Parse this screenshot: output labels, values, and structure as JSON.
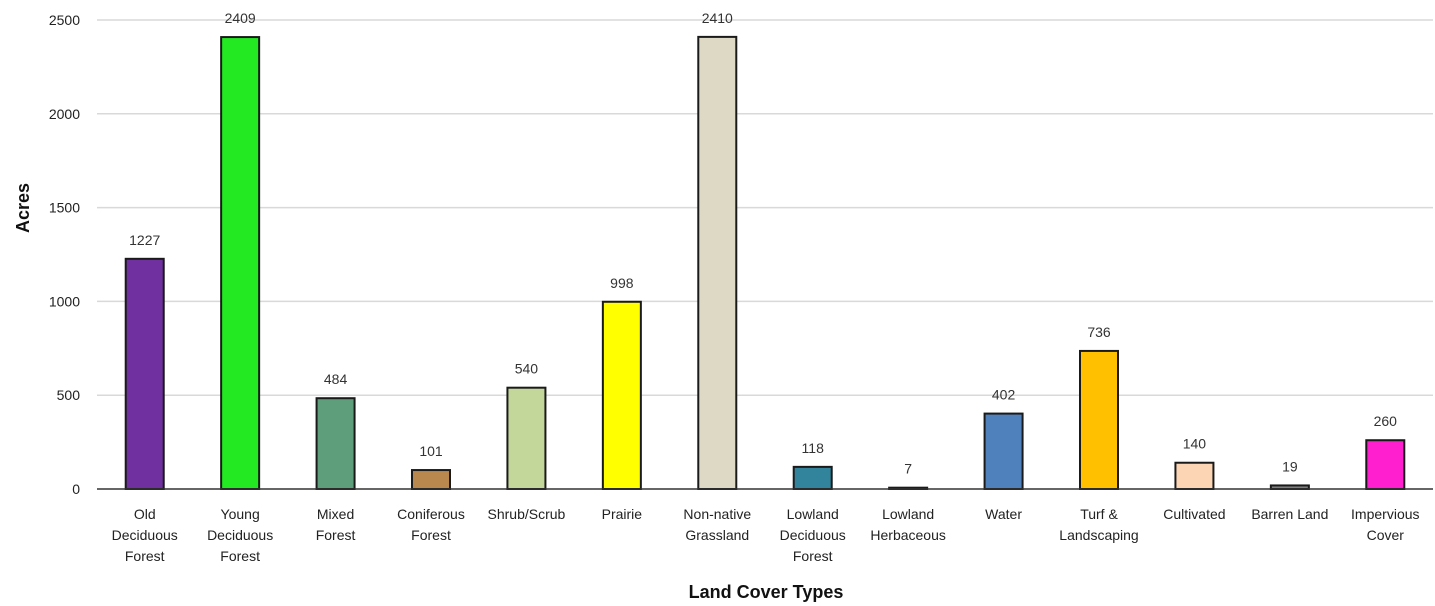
{
  "chart_data": {
    "type": "bar",
    "title": "",
    "xlabel": "Land Cover Types",
    "ylabel": "Acres",
    "ylim": [
      0,
      2500
    ],
    "yticks": [
      0,
      500,
      1000,
      1500,
      2000,
      2500
    ],
    "grid": true,
    "legend": "none",
    "categories": [
      [
        "Old",
        "Deciduous",
        "Forest"
      ],
      [
        "Young",
        "Deciduous",
        "Forest"
      ],
      [
        "Mixed",
        "Forest"
      ],
      [
        "Coniferous",
        "Forest"
      ],
      [
        "Shrub/Scrub"
      ],
      [
        "Prairie"
      ],
      [
        "Non-native",
        "Grassland"
      ],
      [
        "Lowland",
        "Deciduous",
        "Forest"
      ],
      [
        "Lowland",
        "Herbaceous"
      ],
      [
        "Water"
      ],
      [
        "Turf &",
        "Landscaping"
      ],
      [
        "Cultivated"
      ],
      [
        "Barren Land"
      ],
      [
        "Impervious",
        "Cover"
      ]
    ],
    "values": [
      1227,
      2409,
      484,
      101,
      540,
      998,
      2410,
      118,
      7,
      402,
      736,
      140,
      19,
      260
    ],
    "colors": [
      "#7030a0",
      "#22e922",
      "#5f9e7a",
      "#b8884e",
      "#c4d79b",
      "#ffff00",
      "#ddd9c4",
      "#31849b",
      "#8c8c8c",
      "#4f81bd",
      "#ffc000",
      "#fcd5b4",
      "#808080",
      "#ff1fcf"
    ]
  }
}
